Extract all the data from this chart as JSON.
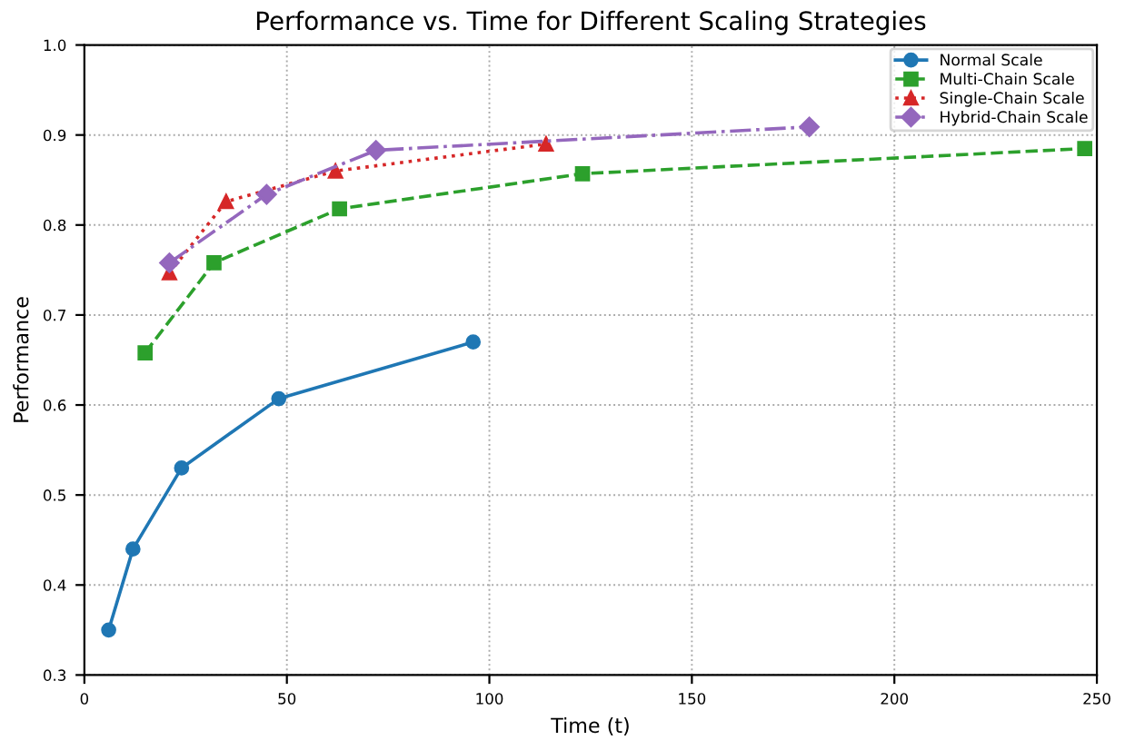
{
  "chart_data": {
    "type": "line",
    "title": "Performance vs. Time for Different Scaling Strategies",
    "xlabel": "Time (t)",
    "ylabel": "Performance",
    "series": [
      {
        "name": "Normal Scale",
        "color": "#1f77b4",
        "marker": "circle",
        "line_style": "solid",
        "x": [
          6,
          12,
          24,
          48,
          96
        ],
        "values": [
          0.35,
          0.44,
          0.53,
          0.607,
          0.67
        ]
      },
      {
        "name": "Multi-Chain Scale",
        "color": "#2ca02c",
        "marker": "square",
        "line_style": "dashed",
        "x": [
          15,
          32,
          63,
          123,
          247
        ],
        "values": [
          0.658,
          0.758,
          0.818,
          0.857,
          0.885
        ]
      },
      {
        "name": "Single-Chain Scale",
        "color": "#d62728",
        "marker": "triangle",
        "line_style": "dotted",
        "x": [
          21,
          35,
          62,
          114
        ],
        "values": [
          0.747,
          0.826,
          0.86,
          0.89
        ]
      },
      {
        "name": "Hybrid-Chain Scale",
        "color": "#9467bd",
        "marker": "diamond",
        "line_style": "dashdot",
        "x": [
          21,
          45,
          72,
          179
        ],
        "values": [
          0.758,
          0.834,
          0.883,
          0.909
        ]
      }
    ],
    "xlim": [
      0,
      250
    ],
    "xticks": [
      0,
      50,
      100,
      150,
      200,
      250
    ],
    "ylim": [
      0.3,
      1.0
    ],
    "yticks": [
      0.3,
      0.4,
      0.5,
      0.6,
      0.7,
      0.8,
      0.9,
      {
        "value": 1.0,
        "label": "1.0"
      }
    ],
    "grid": true,
    "legend": "top right"
  }
}
